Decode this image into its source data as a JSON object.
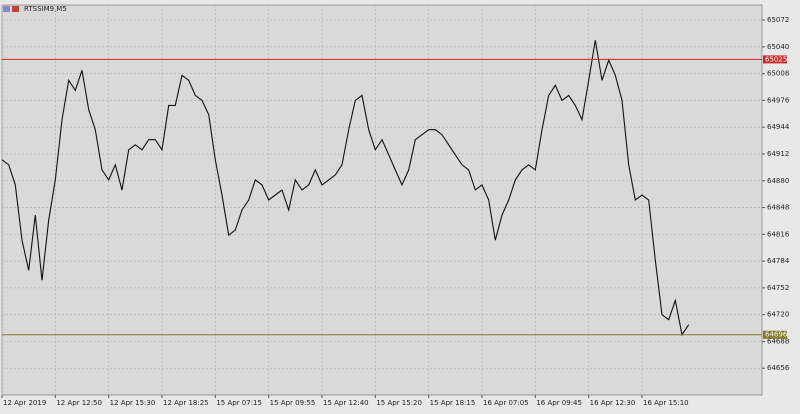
{
  "chart_data": {
    "type": "line",
    "title": "RTSSIM9,M5",
    "series": [
      {
        "name": "RTSSIM9,M5",
        "color": "#111111",
        "values": [
          64905,
          64899,
          64875,
          64809,
          64773,
          64839,
          64761,
          64833,
          64881,
          64953,
          65000,
          64988,
          65012,
          64965,
          64941,
          64893,
          64881,
          64899,
          64869,
          64917,
          64923,
          64917,
          64929,
          64929,
          64917,
          64970,
          64970,
          65006,
          65000,
          64982,
          64976,
          64959,
          64905,
          64863,
          64815,
          64821,
          64845,
          64857,
          64881,
          64875,
          64857,
          64863,
          64869,
          64845,
          64881,
          64869,
          64875,
          64893,
          64875,
          64881,
          64887,
          64899,
          64941,
          64976,
          64982,
          64941,
          64917,
          64929,
          64911,
          64893,
          64875,
          64893,
          64929,
          64935,
          64941,
          64941,
          64935,
          64923,
          64911,
          64899,
          64893,
          64869,
          64875,
          64857,
          64809,
          64839,
          64857,
          64881,
          64893,
          64899,
          64893,
          64941,
          64982,
          64994,
          64976,
          64982,
          64970,
          64953,
          65000,
          65048,
          65000,
          65024,
          65006,
          64976,
          64899,
          64857,
          64863,
          64857,
          64785,
          64720,
          64714,
          64737,
          64696,
          64708
        ]
      }
    ],
    "xlim": [
      0,
      114
    ],
    "xticks": [
      {
        "value": 0,
        "label": "12 Apr 2019"
      },
      {
        "value": 8,
        "label": "12 Apr 12:50"
      },
      {
        "value": 16,
        "label": "12 Apr 15:30"
      },
      {
        "value": 24,
        "label": "12 Apr 18:25"
      },
      {
        "value": 32,
        "label": "15 Apr 07:15"
      },
      {
        "value": 40,
        "label": "15 Apr 09:55"
      },
      {
        "value": 48,
        "label": "15 Apr 12:40"
      },
      {
        "value": 56,
        "label": "15 Apr 15:20"
      },
      {
        "value": 64,
        "label": "15 Apr 18:15"
      },
      {
        "value": 72,
        "label": "16 Apr 07:05"
      },
      {
        "value": 80,
        "label": "16 Apr 09:45"
      },
      {
        "value": 88,
        "label": "16 Apr 12:30"
      },
      {
        "value": 96,
        "label": "16 Apr 15:10"
      }
    ],
    "ylim": [
      64624,
      65090
    ],
    "yticks": [
      64656,
      64688,
      64720,
      64752,
      64784,
      64816,
      64848,
      64880,
      64912,
      64944,
      64976,
      65008,
      65040,
      65072
    ],
    "hlines": [
      {
        "value": 65025,
        "color": "#cc2a2a"
      },
      {
        "value": 64696,
        "color": "#807a2a"
      }
    ],
    "grid": true
  }
}
